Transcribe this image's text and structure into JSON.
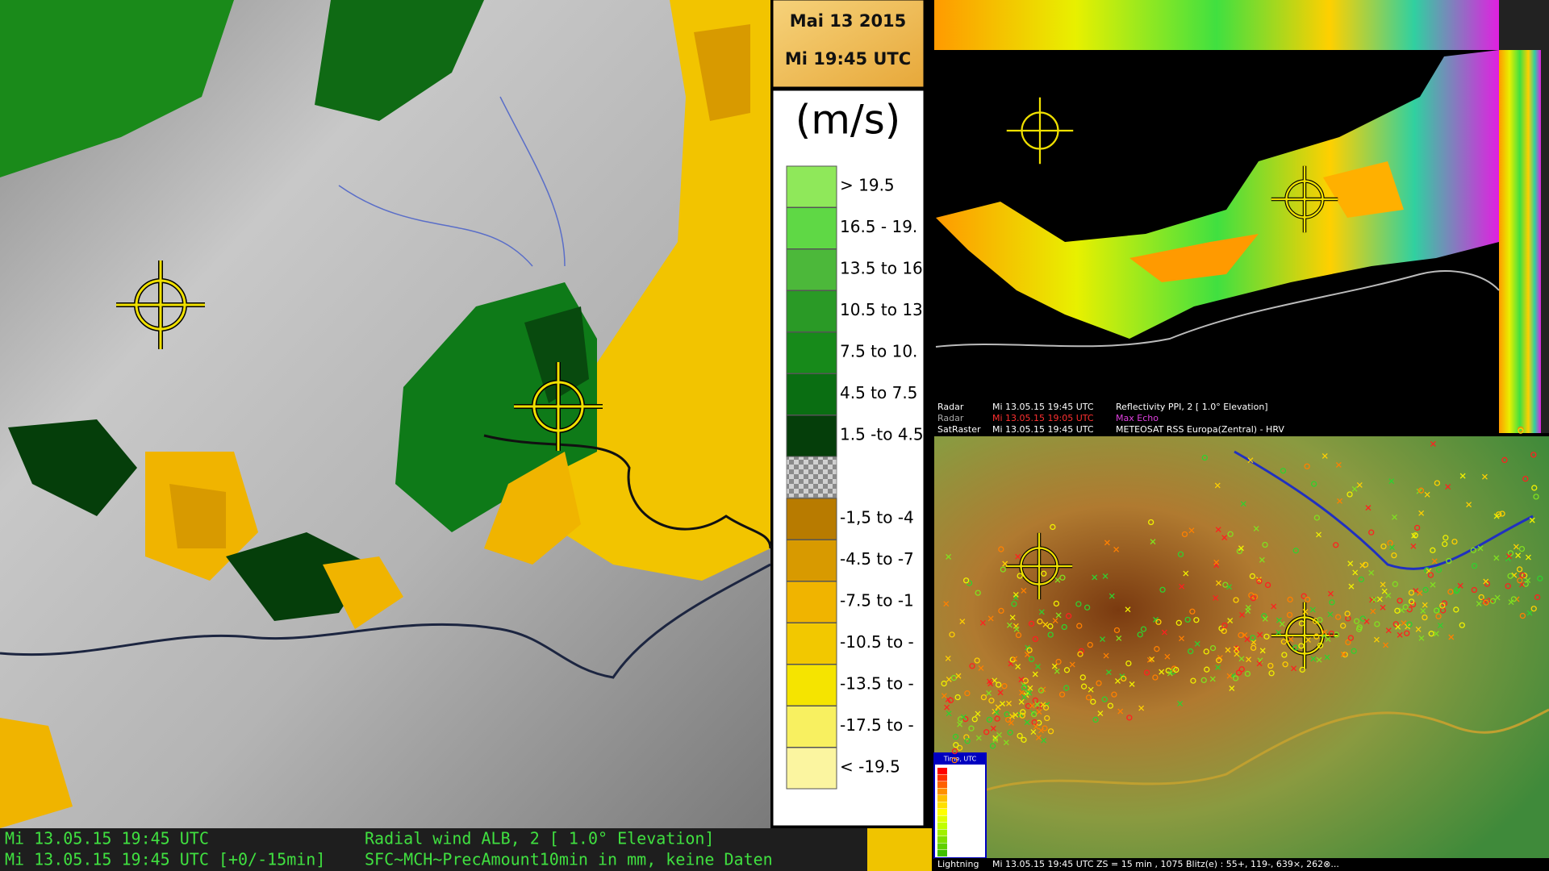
{
  "header": {
    "date": "Mai 13 2015",
    "time": "Mi 19:45 UTC"
  },
  "legend": {
    "unit": "(m/s)",
    "positive": [
      {
        "label": "> 19.5",
        "color": "#8fe85a"
      },
      {
        "label": "16.5 - 19.",
        "color": "#5fd845"
      },
      {
        "label": "13.5 to 16",
        "color": "#4cb83a"
      },
      {
        "label": "10.5 to 13",
        "color": "#2a9a26"
      },
      {
        "label": "7.5 to 10.",
        "color": "#178a1a"
      },
      {
        "label": "4.5 to 7.5",
        "color": "#0a6e12"
      },
      {
        "label": "1.5 -to 4.5",
        "color": "#053e0a"
      }
    ],
    "negative": [
      {
        "label": "-1,5 to -4",
        "color": "#b87b00"
      },
      {
        "label": "-4.5 to -7",
        "color": "#d89a00"
      },
      {
        "label": "-7.5 to -1",
        "color": "#f0b400"
      },
      {
        "label": "-10.5 to -",
        "color": "#f2c800"
      },
      {
        "label": "-13.5 to -",
        "color": "#f5e400"
      },
      {
        "label": "-17.5 to -",
        "color": "#f8f060"
      },
      {
        "label": "< -19.5",
        "color": "#fbf5a0"
      }
    ]
  },
  "status": {
    "line1_time": "Mi 13.05.15 19:45 UTC",
    "line1_product": "Radial wind ALB, 2 [ 1.0° Elevation]",
    "line2_time": "Mi 13.05.15 19:45 UTC [+0/-15min]",
    "line2_product": "SFC~MCH~PrecAmount10min in mm, keine Daten"
  },
  "radar_panel": {
    "rows": [
      {
        "source": "Radar",
        "time": "Mi 13.05.15 19:45 UTC",
        "product": "Reflectivity  PPI, 2  [ 1.0° Elevation]"
      },
      {
        "source": "Radar",
        "time": "Mi 13.05.15 19:05 UTC",
        "product": "Max Echo"
      },
      {
        "source": "SatRaster",
        "time": "Mi 13.05.15 19:45 UTC",
        "product": "METEOSAT RSS Europa(Zentral) - HRV"
      }
    ]
  },
  "lightning_panel": {
    "legend_title": "Time, UTC",
    "source": "Lightning",
    "info": "Mi 13.05.15 19:45 UTC  ZS = 15 min , 1075 Blitz(e) : 55+, 119-, 639×, 262⊗..."
  }
}
